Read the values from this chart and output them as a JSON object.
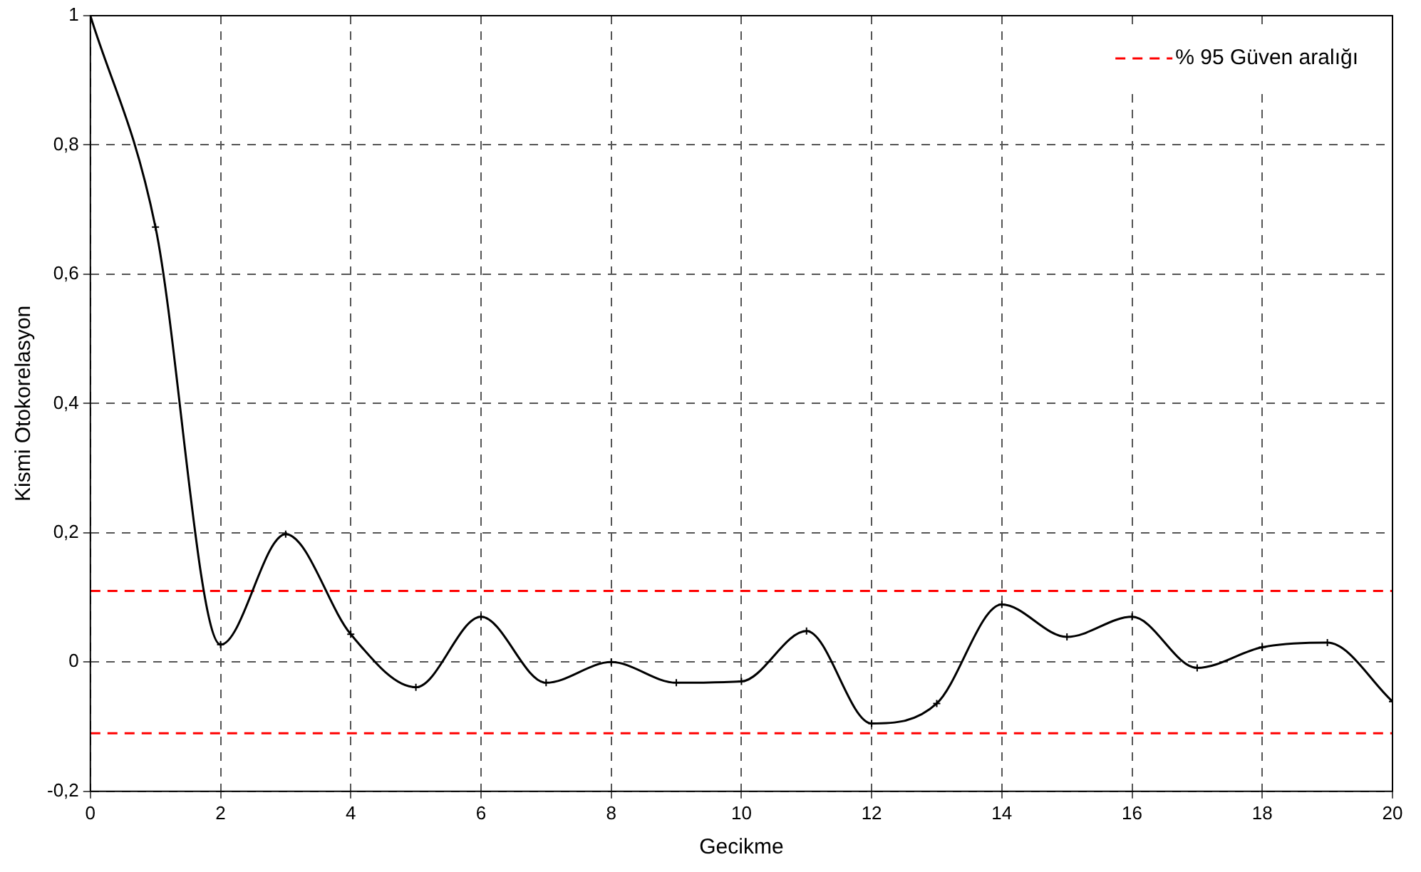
{
  "chart_data": {
    "type": "line",
    "xlabel": "Gecikme",
    "ylabel": "Kismi Otokorelasyon",
    "x": [
      0,
      1,
      2,
      3,
      4,
      5,
      6,
      7,
      8,
      9,
      10,
      11,
      12,
      13,
      14,
      15,
      16,
      17,
      18,
      19,
      20
    ],
    "series": [
      {
        "color": "#000000",
        "values": [
          1,
          0.673,
          0.027,
          0.198,
          0.043,
          -0.039,
          0.07,
          -0.032,
          0,
          -0.032,
          -0.03,
          0.048,
          -0.095,
          -0.064,
          0.089,
          0.039,
          0.07,
          -0.009,
          0.023,
          0.03,
          -0.061
        ]
      }
    ],
    "xlim": [
      0,
      20
    ],
    "xticks": [
      0,
      2,
      4,
      6,
      8,
      10,
      12,
      14,
      16,
      18,
      20
    ],
    "ylim": [
      -0.2,
      1
    ],
    "yticks": [
      {
        "value": -0.2,
        "label": "-0,2"
      },
      {
        "value": 0,
        "label": "0"
      },
      {
        "value": 0.2,
        "label": "0,2"
      },
      {
        "value": 0.4,
        "label": "0,4"
      },
      {
        "value": 0.6,
        "label": "0,6"
      },
      {
        "value": 0.8,
        "label": "0,8"
      },
      {
        "value": 1,
        "label": "1"
      }
    ],
    "ref_lines": [
      {
        "axis": "y",
        "value": 0.11,
        "label": "% 95 Güven aralığı",
        "color": "#ff0000",
        "line_style": "dashed"
      },
      {
        "axis": "y",
        "value": -0.11,
        "color": "#ff0000",
        "line_style": "dashed"
      }
    ],
    "grid": true,
    "legend": "top right",
    "marker": "cross",
    "line_style": "solid"
  }
}
